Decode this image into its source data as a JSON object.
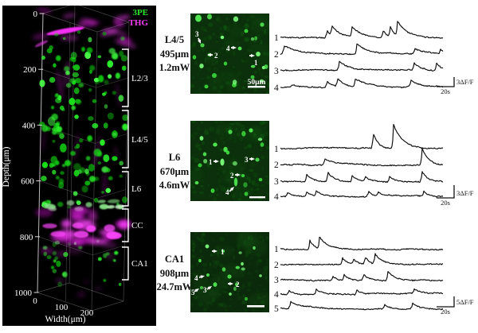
{
  "figure": {
    "left_panel": {
      "legend": [
        {
          "label": "3PE",
          "color": "#2ce82c"
        },
        {
          "label": "THG",
          "color": "#f03cf0"
        }
      ],
      "depth_axis": {
        "label": "Depth(μm)",
        "ticks": [
          "0",
          "200",
          "400",
          "600",
          "800",
          "1000"
        ]
      },
      "width_axis": {
        "label": "Width(μm)",
        "ticks": [
          "0",
          "100",
          "200"
        ]
      },
      "regions": [
        {
          "label": "L2/3"
        },
        {
          "label": "L4/5"
        },
        {
          "label": "L6"
        },
        {
          "label": "CC"
        },
        {
          "label": "CA1"
        }
      ],
      "colors": {
        "neurons_3pe": "#22dd22",
        "thg": "#ee22ee",
        "background": "#000000"
      }
    },
    "panels": [
      {
        "region": "L4/5",
        "depth": "495μm",
        "power": "1.2mW",
        "scalebar_label": "50μm",
        "cell_markers": [
          "1",
          "2",
          "3",
          "4"
        ],
        "trace_scale_v": "3ΔF/F",
        "trace_scale_h": "20s"
      },
      {
        "region": "L6",
        "depth": "670μm",
        "power": "4.6mW",
        "scalebar_label": "",
        "cell_markers": [
          "1",
          "2",
          "3",
          "4"
        ],
        "trace_scale_v": "3ΔF/F",
        "trace_scale_h": "20s"
      },
      {
        "region": "CA1",
        "depth": "908μm",
        "power": "24.7mW",
        "scalebar_label": "",
        "cell_markers": [
          "1",
          "2",
          "3",
          "4",
          "5"
        ],
        "trace_scale_v": "5ΔF/F",
        "trace_scale_h": "20s"
      }
    ]
  },
  "chart_data": [
    {
      "type": "line",
      "panel": "L4/5",
      "note": "Ca transients; x = time fraction of sweep (horiz bar = 20s), amplitude px (vert bar = 3ΔF/F ≈ 12px), decay px",
      "traces": [
        {
          "label": "1",
          "events": [
            [
              0.285,
              11,
              5
            ],
            [
              0.315,
              14,
              12
            ],
            [
              0.44,
              12,
              11
            ],
            [
              0.63,
              9,
              6
            ],
            [
              0.675,
              12,
              6
            ],
            [
              0.72,
              18,
              14
            ]
          ]
        },
        {
          "label": "2",
          "events": [
            [
              0.02,
              11,
              18
            ],
            [
              0.47,
              12,
              14
            ],
            [
              0.825,
              7,
              12
            ],
            [
              0.985,
              6,
              5
            ]
          ]
        },
        {
          "label": "3",
          "events": [
            [
              0.36,
              12,
              12
            ],
            [
              0.82,
              9,
              9
            ],
            [
              0.96,
              10,
              6
            ]
          ]
        },
        {
          "label": "4",
          "events": [
            [
              0.07,
              3,
              12
            ],
            [
              0.285,
              9,
              8
            ],
            [
              0.35,
              10,
              10
            ],
            [
              0.46,
              10,
              16
            ],
            [
              0.8,
              8,
              12
            ]
          ]
        }
      ]
    },
    {
      "type": "line",
      "panel": "L6",
      "note": "vert bar = 3ΔF/F, horiz bar = 20s",
      "traces": [
        {
          "label": "1",
          "events": [
            [
              0.57,
              20,
              6
            ],
            [
              0.695,
              30,
              12
            ]
          ]
        },
        {
          "label": "2",
          "events": [
            [
              0.27,
              8,
              18
            ],
            [
              0.87,
              22,
              8
            ]
          ]
        },
        {
          "label": "3",
          "events": [
            [
              0.16,
              10,
              8
            ],
            [
              0.29,
              13,
              8
            ],
            [
              0.44,
              8,
              8
            ],
            [
              0.52,
              6,
              6
            ],
            [
              0.67,
              8,
              6
            ],
            [
              0.87,
              14,
              7
            ]
          ]
        },
        {
          "label": "4",
          "events": [
            [
              0.04,
              5,
              8
            ],
            [
              0.16,
              6,
              6
            ],
            [
              0.22,
              6,
              8
            ],
            [
              0.54,
              7,
              6
            ],
            [
              0.6,
              5,
              8
            ],
            [
              0.88,
              7,
              6
            ]
          ]
        }
      ]
    },
    {
      "type": "line",
      "panel": "CA1",
      "note": "vert bar = 5ΔF/F, horiz bar = 20s",
      "traces": [
        {
          "label": "1",
          "events": [
            [
              0.18,
              12,
              6
            ],
            [
              0.24,
              15,
              11
            ]
          ]
        },
        {
          "label": "2",
          "events": [
            [
              0.38,
              9,
              5
            ],
            [
              0.45,
              6,
              5
            ],
            [
              0.52,
              10,
              5
            ],
            [
              0.58,
              14,
              9
            ]
          ]
        },
        {
          "label": "3",
          "events": [
            [
              0.32,
              6,
              5
            ],
            [
              0.39,
              8,
              6
            ],
            [
              0.51,
              8,
              6
            ],
            [
              0.66,
              12,
              9
            ]
          ]
        },
        {
          "label": "4",
          "events": [
            [
              0.05,
              5,
              7
            ],
            [
              0.22,
              7,
              7
            ],
            [
              0.47,
              6,
              6
            ],
            [
              0.82,
              6,
              7
            ]
          ]
        },
        {
          "label": "5",
          "events": [
            [
              0.06,
              10,
              15
            ],
            [
              0.64,
              6,
              7
            ],
            [
              0.81,
              8,
              9
            ]
          ]
        }
      ]
    }
  ]
}
